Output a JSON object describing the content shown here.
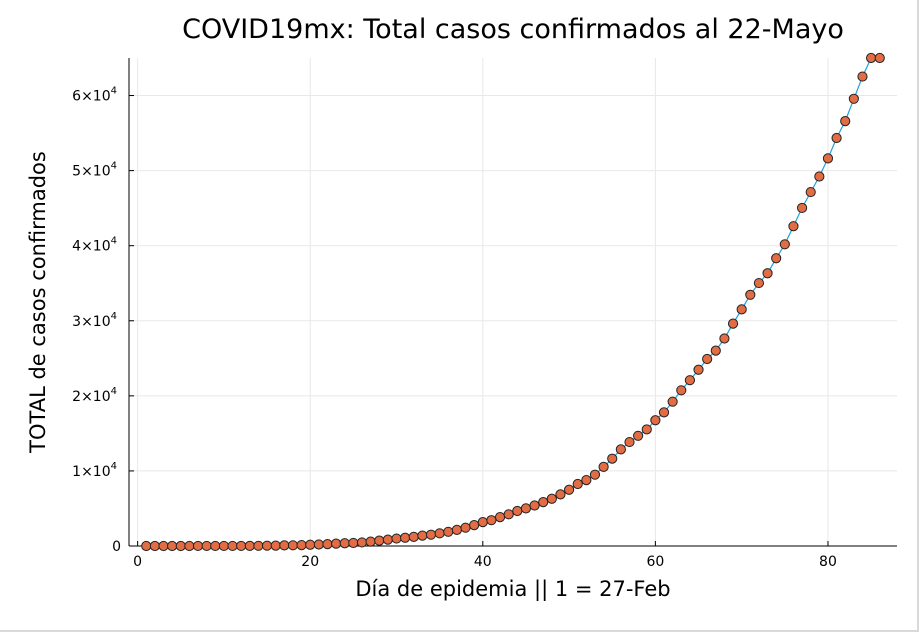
{
  "chart_data": {
    "type": "scatter",
    "title": "COVID19mx: Total casos confirmados al 22-Mayo",
    "xlabel": "Día de epidemia || 1 = 27-Feb",
    "ylabel": "TOTAL de casos confirmados",
    "xlim": [
      -1,
      88
    ],
    "ylim": [
      0,
      65000
    ],
    "x_ticks": [
      0,
      20,
      40,
      60,
      80
    ],
    "y_ticks": [
      {
        "value": 0,
        "mantissa": "0",
        "exponent": ""
      },
      {
        "value": 10000,
        "mantissa": "1×10",
        "exponent": "4"
      },
      {
        "value": 20000,
        "mantissa": "2×10",
        "exponent": "4"
      },
      {
        "value": 30000,
        "mantissa": "3×10",
        "exponent": "4"
      },
      {
        "value": 40000,
        "mantissa": "4×10",
        "exponent": "4"
      },
      {
        "value": 50000,
        "mantissa": "5×10",
        "exponent": "4"
      },
      {
        "value": 60000,
        "mantissa": "6×10",
        "exponent": "4"
      }
    ],
    "grid": true,
    "legend": "none",
    "line_color": "#1ba1e2",
    "marker_color": "#e26d45",
    "marker_edge": "#222222",
    "series": [
      {
        "x": [
          1,
          2,
          3,
          4,
          5,
          6,
          7,
          8,
          9,
          10,
          11,
          12,
          13,
          14,
          15,
          16,
          17,
          18,
          19,
          20,
          21,
          22,
          23,
          24,
          25,
          26,
          27,
          28,
          29,
          30,
          31,
          32,
          33,
          34,
          35,
          36,
          37,
          38,
          39,
          40,
          41,
          42,
          43,
          44,
          45,
          46,
          47,
          48,
          49,
          50,
          51,
          52,
          53,
          54,
          55,
          56,
          57,
          58,
          59,
          60,
          61,
          62,
          63,
          64,
          65,
          66,
          67,
          68,
          69,
          70,
          71,
          72,
          73,
          74,
          75,
          76,
          77,
          78,
          79,
          80,
          81,
          82,
          83,
          84,
          85,
          86
        ],
        "values": [
          1,
          2,
          4,
          4,
          5,
          5,
          6,
          7,
          7,
          7,
          7,
          11,
          15,
          26,
          41,
          53,
          82,
          93,
          118,
          164,
          203,
          251,
          316,
          367,
          405,
          475,
          585,
          717,
          848,
          993,
          1094,
          1215,
          1378,
          1510,
          1688,
          1890,
          2143,
          2439,
          2785,
          3181,
          3441,
          3844,
          4219,
          4661,
          5014,
          5399,
          5847,
          6297,
          6875,
          7497,
          8261,
          8772,
          9501,
          10544,
          11633,
          12872,
          13842,
          14677,
          15529,
          16752,
          17799,
          19224,
          20739,
          22088,
          23471,
          24905,
          26025,
          27634,
          29616,
          31522,
          33460,
          35022,
          36327,
          38324,
          40186,
          42595,
          45032,
          47144,
          49219,
          51633,
          54346,
          56594,
          59567,
          62527,
          65000,
          65000
        ]
      }
    ]
  }
}
